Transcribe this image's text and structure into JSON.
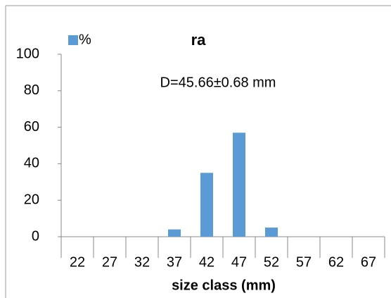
{
  "chart_data": {
    "type": "bar",
    "title": "ra",
    "annotation": "D=45.66±0.68 mm",
    "x_label": "size class (mm)",
    "categories": [
      "22",
      "27",
      "32",
      "37",
      "42",
      "47",
      "52",
      "57",
      "62",
      "67"
    ],
    "series": [
      {
        "name": "%",
        "color": "#5b9bd5",
        "values": [
          0,
          0,
          0,
          4,
          35,
          57,
          5,
          0,
          0,
          0
        ]
      }
    ],
    "ylim": [
      0,
      100
    ],
    "yticks": [
      0,
      20,
      40,
      60,
      80,
      100
    ],
    "grid": false,
    "legend": "top-left"
  }
}
